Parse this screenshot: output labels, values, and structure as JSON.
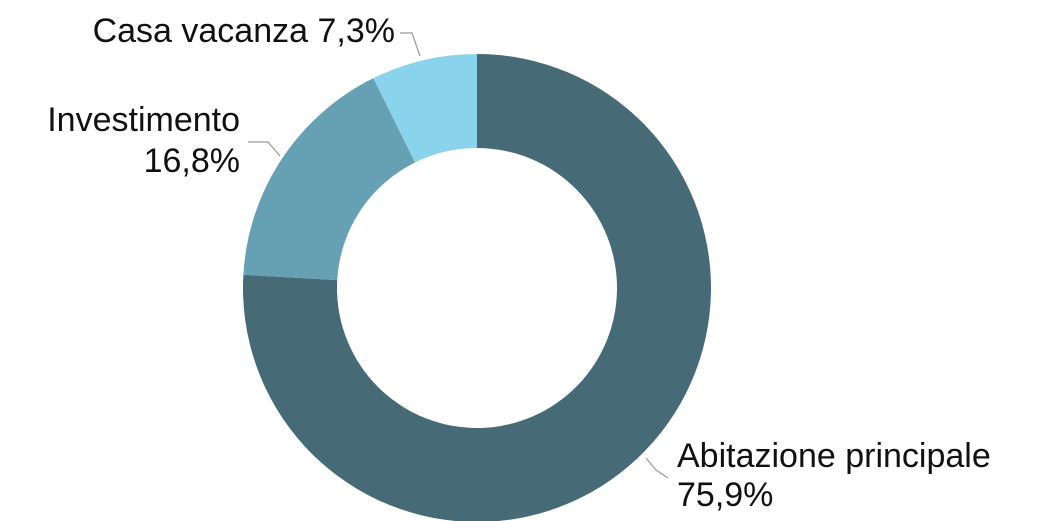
{
  "chart_data": {
    "type": "donut",
    "categories": [
      "Abitazione principale",
      "Investimento",
      "Casa vacanza"
    ],
    "values": [
      75.9,
      16.8,
      7.3
    ],
    "value_labels": [
      "75,9%",
      "16,8%",
      "7,3%"
    ],
    "colors": [
      "#476a77",
      "#66a0b3",
      "#8ad3ec"
    ]
  }
}
